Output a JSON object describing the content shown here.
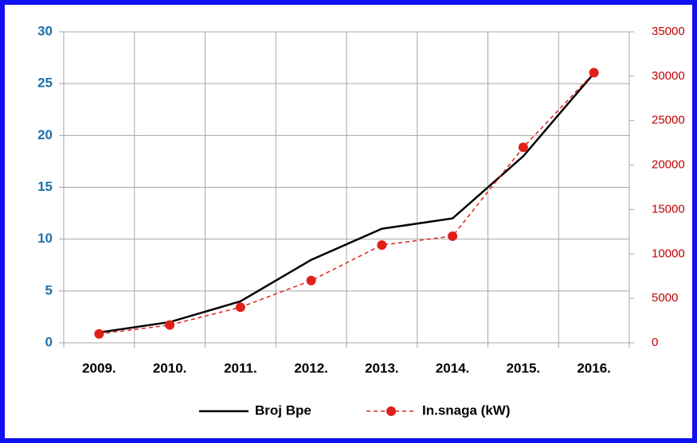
{
  "chart_data": {
    "type": "line",
    "categories": [
      "2009.",
      "2010.",
      "2011.",
      "2012.",
      "2013.",
      "2014.",
      "2015.",
      "2016."
    ],
    "series": [
      {
        "name": "Broj Bpe",
        "color": "#000000",
        "values": [
          1,
          2,
          4,
          8,
          11,
          12,
          18,
          26
        ]
      },
      {
        "name": "In.snaga (kW)",
        "color": "#e0201b",
        "axis": "y2",
        "values": [
          1000,
          2000,
          4000,
          7000,
          11000,
          12000,
          22000,
          30400
        ]
      }
    ],
    "ylim": [
      0,
      30
    ],
    "yticks": [
      0,
      5,
      10,
      15,
      20,
      25,
      30
    ],
    "y2lim": [
      0,
      35000
    ],
    "y2ticks": [
      0,
      5000,
      10000,
      15000,
      20000,
      25000,
      30000,
      35000
    ],
    "grid": true,
    "legend": "bottom"
  }
}
